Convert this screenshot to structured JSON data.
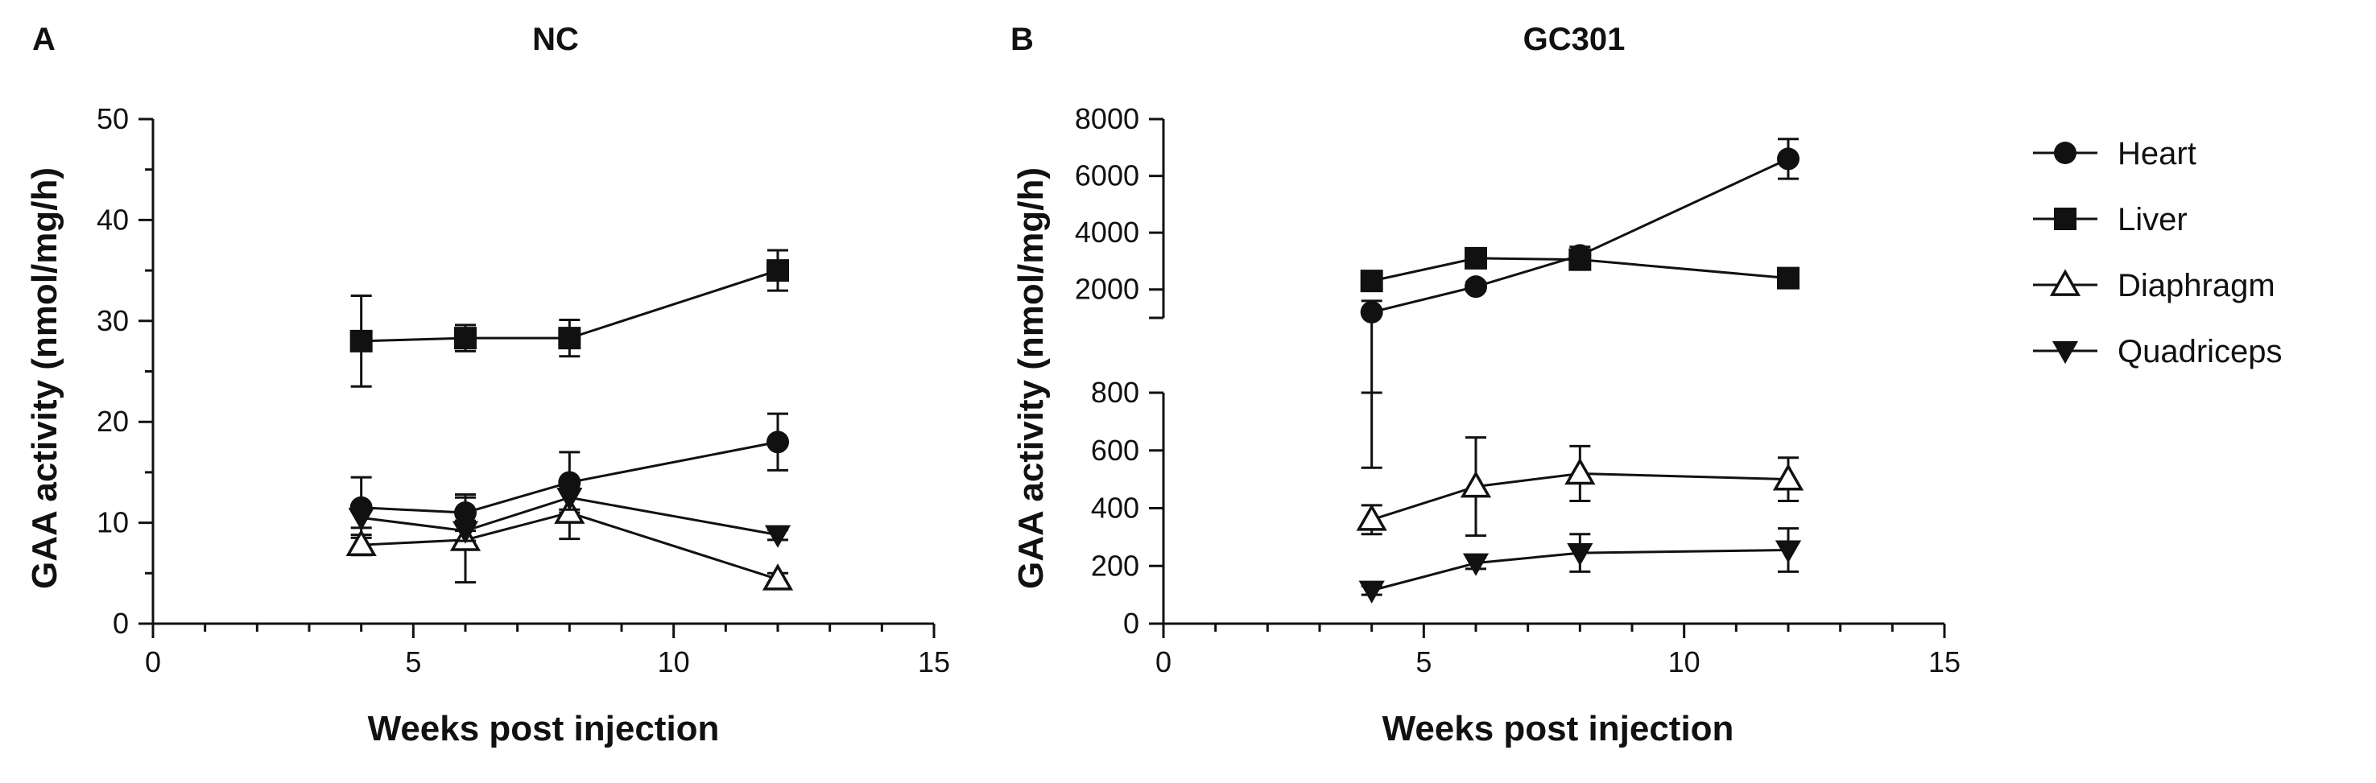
{
  "chart_data": [
    {
      "panel": "A",
      "type": "line",
      "title": "NC",
      "xlabel": "Weeks post injection",
      "ylabel": "GAA activity (nmol/mg/h)",
      "xlim": [
        0,
        15
      ],
      "ylim": [
        0,
        50
      ],
      "xticks": [
        0,
        5,
        10,
        15
      ],
      "yticks": [
        0,
        10,
        20,
        30,
        40,
        50
      ],
      "series": [
        {
          "name": "Heart",
          "marker": "circle",
          "x": [
            4,
            6,
            8,
            12
          ],
          "y": [
            11.5,
            11,
            14,
            18
          ],
          "err": [
            3,
            1.8,
            3,
            2.8
          ]
        },
        {
          "name": "Liver",
          "marker": "square",
          "x": [
            4,
            6,
            8,
            12
          ],
          "y": [
            28,
            28.3,
            28.3,
            35
          ],
          "err": [
            4.5,
            1.3,
            1.8,
            2
          ]
        },
        {
          "name": "Diaphragm",
          "marker": "triangle-up",
          "x": [
            4,
            6,
            8,
            12
          ],
          "y": [
            7.8,
            8.3,
            11,
            4.4
          ],
          "err": [
            1,
            4.2,
            2.6,
            0.6
          ]
        },
        {
          "name": "Quadriceps",
          "marker": "triangle-down",
          "x": [
            4,
            6,
            8,
            12
          ],
          "y": [
            10.5,
            9.2,
            12.5,
            8.8
          ],
          "err": [
            1,
            1,
            1.2,
            0.5
          ]
        }
      ]
    },
    {
      "panel": "B",
      "type": "line",
      "title": "GC301",
      "xlabel": "Weeks post injection",
      "ylabel": "GAA activity (nmol/mg/h)",
      "xlim": [
        0,
        15
      ],
      "ylim_lower": [
        0,
        800
      ],
      "ylim_upper": [
        1000,
        8000
      ],
      "xticks": [
        0,
        5,
        10,
        15
      ],
      "yticks_lower": [
        0,
        200,
        400,
        600,
        800
      ],
      "yticks_upper": [
        2000,
        4000,
        6000,
        8000
      ],
      "series": [
        {
          "name": "Heart",
          "marker": "circle",
          "x": [
            4,
            6,
            8,
            12
          ],
          "y": [
            1200,
            2100,
            3200,
            6600
          ],
          "err": [
            400,
            150,
            300,
            700
          ],
          "err_up_only": [
            false,
            false,
            false,
            false
          ]
        },
        {
          "name": "Liver",
          "marker": "square",
          "x": [
            4,
            6,
            8,
            12
          ],
          "y": [
            2300,
            3100,
            3050,
            2400
          ],
          "err": [
            150,
            150,
            150,
            150
          ],
          "err_up_only": [
            false,
            false,
            false,
            false
          ]
        },
        {
          "name": "Diaphragm",
          "marker": "triangle-up",
          "x": [
            4,
            6,
            8,
            12
          ],
          "y": [
            360,
            475,
            520,
            500
          ],
          "err": [
            50,
            170,
            95,
            75
          ],
          "err_up_only": [
            false,
            false,
            false,
            false
          ]
        },
        {
          "name": "Quadriceps",
          "marker": "triangle-down",
          "x": [
            4,
            6,
            8,
            12
          ],
          "y": [
            115,
            210,
            245,
            255
          ],
          "err": [
            15,
            20,
            65,
            75
          ],
          "err_up_only": [
            false,
            false,
            false,
            false
          ]
        }
      ],
      "extra_bars": [
        {
          "x": 4,
          "from": 540,
          "to": 800
        }
      ]
    }
  ],
  "legend": {
    "position": "right",
    "items": [
      {
        "label": "Heart",
        "marker": "circle"
      },
      {
        "label": "Liver",
        "marker": "square"
      },
      {
        "label": "Diaphragm",
        "marker": "triangle-up"
      },
      {
        "label": "Quadriceps",
        "marker": "triangle-down"
      }
    ]
  }
}
